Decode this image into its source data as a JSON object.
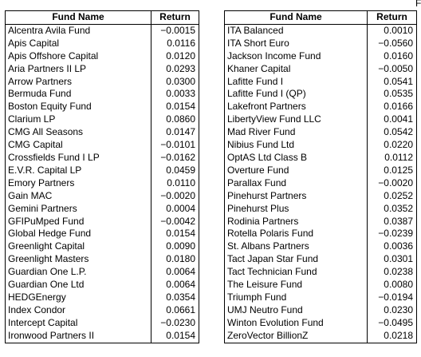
{
  "edge_mark": "F",
  "tables": [
    {
      "headers": [
        "Fund Name",
        "Return"
      ],
      "rows": [
        [
          "Alcentra Avila Fund",
          "−0.0015"
        ],
        [
          "Apis Capital",
          "0.0116"
        ],
        [
          "Apis Offshore Capital",
          "0.0120"
        ],
        [
          "Aria Partners II LP",
          "0.0293"
        ],
        [
          "Arrow Partners",
          "0.0300"
        ],
        [
          "Bermuda Fund",
          "0.0033"
        ],
        [
          "Boston Equity Fund",
          "0.0154"
        ],
        [
          "Clarium LP",
          "0.0860"
        ],
        [
          "CMG All Seasons",
          "0.0147"
        ],
        [
          "CMG Capital",
          "−0.0101"
        ],
        [
          "Crossfields Fund I LP",
          "−0.0162"
        ],
        [
          "E.V.R. Capital LP",
          "0.0459"
        ],
        [
          "Emory Partners",
          "0.0110"
        ],
        [
          "Gain MAC",
          "−0.0020"
        ],
        [
          "Gemini Partners",
          "0.0004"
        ],
        [
          "GFIPuMped Fund",
          "−0.0042"
        ],
        [
          "Global Hedge Fund",
          "0.0154"
        ],
        [
          "Greenlight Capital",
          "0.0090"
        ],
        [
          "Greenlight Masters",
          "0.0180"
        ],
        [
          "Guardian One L.P.",
          "0.0064"
        ],
        [
          "Guardian One Ltd",
          "0.0064"
        ],
        [
          "HEDGEnergy",
          "0.0354"
        ],
        [
          "Index Condor",
          "0.0661"
        ],
        [
          "Intercept Capital",
          "−0.0230"
        ],
        [
          "Ironwood Partners II",
          "0.0154"
        ]
      ]
    },
    {
      "headers": [
        "Fund Name",
        "Return"
      ],
      "rows": [
        [
          "ITA Balanced",
          "0.0010"
        ],
        [
          "ITA Short Euro",
          "−0.0560"
        ],
        [
          "Jackson Income Fund",
          "0.0160"
        ],
        [
          "Khaner Capital",
          "−0.0050"
        ],
        [
          "Lafitte Fund I",
          "0.0541"
        ],
        [
          "Lafitte Fund I (QP)",
          "0.0535"
        ],
        [
          "Lakefront Partners",
          "0.0166"
        ],
        [
          "LibertyView Fund LLC",
          "0.0041"
        ],
        [
          "Mad River Fund",
          "0.0542"
        ],
        [
          "Nibius Fund Ltd",
          "0.0220"
        ],
        [
          "OptAS Ltd Class B",
          "0.0112"
        ],
        [
          "Overture Fund",
          "0.0125"
        ],
        [
          "Parallax Fund",
          "−0.0020"
        ],
        [
          "Pinehurst Partners",
          "0.0252"
        ],
        [
          "Pinehurst Plus",
          "0.0352"
        ],
        [
          "Rodinia Partners",
          "0.0387"
        ],
        [
          "Rotella Polaris Fund",
          "−0.0239"
        ],
        [
          "St. Albans Partners",
          "0.0036"
        ],
        [
          "Tact Japan Star Fund",
          "0.0301"
        ],
        [
          "Tact Technician Fund",
          "0.0238"
        ],
        [
          "The Leisure Fund",
          "0.0080"
        ],
        [
          "Triumph Fund",
          "−0.0194"
        ],
        [
          "UMJ Neutro Fund",
          "0.0230"
        ],
        [
          "Winton Evolution Fund",
          "−0.0495"
        ],
        [
          "ZeroVector BillionZ",
          "0.0218"
        ]
      ]
    }
  ]
}
